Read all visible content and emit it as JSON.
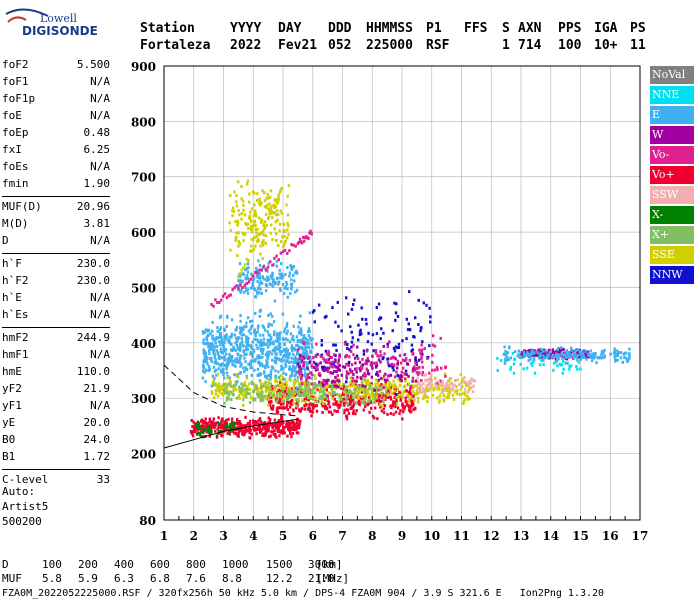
{
  "logo": {
    "line1": "Lowell",
    "line2": "DIGISONDE"
  },
  "header": {
    "row1": [
      "Station",
      "YYYY",
      "DAY",
      "DDD",
      "HHMMSS",
      "P1",
      "FFS",
      "S",
      "AXN",
      "PPS",
      "IGA",
      "PS"
    ],
    "row2": [
      "Fortaleza",
      "2022",
      "Fev21",
      "052",
      "225000",
      "RSF",
      "1",
      "714",
      "100",
      "10+",
      "11"
    ]
  },
  "params": [
    {
      "k": "foF2",
      "v": "5.500"
    },
    {
      "k": "foF1",
      "v": "N/A"
    },
    {
      "k": "foF1p",
      "v": "N/A"
    },
    {
      "k": "foE",
      "v": "N/A"
    },
    {
      "k": "foEp",
      "v": "0.48"
    },
    {
      "k": "fxI",
      "v": "6.25"
    },
    {
      "k": "foEs",
      "v": "N/A"
    },
    {
      "k": "fmin",
      "v": "1.90"
    },
    {
      "k": "MUF(D)",
      "v": "20.96"
    },
    {
      "k": "M(D)",
      "v": "3.81"
    },
    {
      "k": "D",
      "v": "N/A"
    },
    {
      "k": "h`F",
      "v": "230.0"
    },
    {
      "k": "h`F2",
      "v": "230.0"
    },
    {
      "k": "h`E",
      "v": "N/A"
    },
    {
      "k": "h`Es",
      "v": "N/A"
    },
    {
      "k": "hmF2",
      "v": "244.9"
    },
    {
      "k": "hmF1",
      "v": "N/A"
    },
    {
      "k": "hmE",
      "v": "110.0"
    },
    {
      "k": "yF2",
      "v": "21.9"
    },
    {
      "k": "yF1",
      "v": "N/A"
    },
    {
      "k": "yE",
      "v": "20.0"
    },
    {
      "k": "B0",
      "v": "24.0"
    },
    {
      "k": "B1",
      "v": "1.72"
    },
    {
      "k": "C-level",
      "v": "33"
    }
  ],
  "auto": [
    "Auto:",
    "Artist5",
    "500200"
  ],
  "legend": [
    {
      "label": "NoVal",
      "color": "#808080"
    },
    {
      "label": "NNE",
      "color": "#00e0f0"
    },
    {
      "label": "E",
      "color": "#40b0f0"
    },
    {
      "label": "W",
      "color": "#a000a0"
    },
    {
      "label": "Vo-",
      "color": "#e02090"
    },
    {
      "label": "Vo+",
      "color": "#f00030"
    },
    {
      "label": "SSW",
      "color": "#f0b0b0"
    },
    {
      "label": "X-",
      "color": "#008000"
    },
    {
      "label": "X+",
      "color": "#80c060"
    },
    {
      "label": "SSE",
      "color": "#d0d000"
    },
    {
      "label": "NNW",
      "color": "#1010d0"
    }
  ],
  "bottom": {
    "d_label": "D",
    "d_values": [
      "100",
      "200",
      "400",
      "600",
      "800",
      "1000",
      "1500",
      "3000"
    ],
    "d_unit": "[km]",
    "muf_label": "MUF",
    "muf_values": [
      "5.8",
      "5.9",
      "6.3",
      "6.8",
      "7.6",
      "8.8",
      "12.2",
      "21.0"
    ],
    "muf_unit": "[MHz]"
  },
  "footer": "FZA0M_2022052225000.RSF / 320fx256h 50 kHz 5.0 km / DPS-4 FZA0M 904 / 3.9 S 321.6 E   Ion2Png 1.3.20",
  "chart_data": {
    "type": "scatter",
    "x_ticks": [
      1,
      2,
      3,
      4,
      5,
      6,
      7,
      8,
      9,
      10,
      11,
      12,
      13,
      14,
      15,
      16,
      17
    ],
    "y_ticks": [
      80,
      200,
      300,
      400,
      500,
      600,
      700,
      800,
      900
    ],
    "xlim": [
      1,
      17
    ],
    "ylim": [
      80,
      900
    ],
    "grid": true,
    "clusters": [
      {
        "dir": "Vo+",
        "color": "#f00030",
        "xr": [
          1.9,
          5.6
        ],
        "yr": [
          225,
          270
        ],
        "n": 420
      },
      {
        "dir": "Vo+",
        "color": "#f00030",
        "xr": [
          4.5,
          9.5
        ],
        "yr": [
          250,
          340
        ],
        "n": 420
      },
      {
        "dir": "E",
        "color": "#40b0f0",
        "xr": [
          2.3,
          6.0
        ],
        "yr": [
          300,
          470
        ],
        "n": 700
      },
      {
        "dir": "E",
        "color": "#40b0f0",
        "xr": [
          3.5,
          5.5
        ],
        "yr": [
          470,
          560
        ],
        "n": 150
      },
      {
        "dir": "SSE",
        "color": "#d0d000",
        "xr": [
          3.2,
          5.2
        ],
        "yr": [
          530,
          720
        ],
        "n": 180
      },
      {
        "dir": "SSE",
        "color": "#d0d000",
        "xr": [
          2.6,
          11.3
        ],
        "yr": [
          280,
          350
        ],
        "n": 480
      },
      {
        "dir": "X+",
        "color": "#80c060",
        "xr": [
          3.0,
          8.5
        ],
        "yr": [
          280,
          340
        ],
        "n": 220
      },
      {
        "dir": "W",
        "color": "#a000a0",
        "xr": [
          5.5,
          9.5
        ],
        "yr": [
          300,
          400
        ],
        "n": 160
      },
      {
        "dir": "W",
        "color": "#a000a0",
        "xr": [
          13.0,
          15.3
        ],
        "yr": [
          368,
          392
        ],
        "n": 180
      },
      {
        "dir": "E",
        "color": "#40b0f0",
        "xr": [
          12.4,
          16.7
        ],
        "yr": [
          360,
          395
        ],
        "n": 180
      },
      {
        "dir": "NNW",
        "color": "#1010d0",
        "xr": [
          6.0,
          10.0
        ],
        "yr": [
          300,
          520
        ],
        "n": 130
      },
      {
        "dir": "Vo-",
        "color": "#e02090",
        "xr": [
          5.5,
          10.5
        ],
        "yr": [
          300,
          420
        ],
        "n": 160
      },
      {
        "dir": "SSW",
        "color": "#f0b0b0",
        "xr": [
          9.5,
          11.5
        ],
        "yr": [
          300,
          350
        ],
        "n": 70
      },
      {
        "dir": "X-",
        "color": "#008000",
        "xr": [
          2.0,
          3.5
        ],
        "yr": [
          225,
          260
        ],
        "n": 40
      },
      {
        "dir": "NNE",
        "color": "#00e0f0",
        "xr": [
          12.2,
          15.0
        ],
        "yr": [
          330,
          390
        ],
        "n": 40
      }
    ],
    "traces": [
      {
        "dir": "Vo-",
        "color": "#e02090",
        "points": [
          [
            2.6,
            470
          ],
          [
            3.5,
            500
          ],
          [
            4.5,
            540
          ],
          [
            5.5,
            580
          ],
          [
            6.0,
            600
          ]
        ]
      },
      {
        "dir": "SSE",
        "color": "#d0d000",
        "points": [
          [
            3.5,
            520
          ],
          [
            4.3,
            600
          ],
          [
            5.0,
            680
          ]
        ]
      }
    ],
    "profile_line": [
      [
        1.0,
        210
      ],
      [
        2.0,
        225
      ],
      [
        3.0,
        240
      ],
      [
        4.0,
        250
      ],
      [
        5.0,
        258
      ],
      [
        5.5,
        262
      ]
    ],
    "profile_dashed": [
      [
        1.0,
        360
      ],
      [
        2.0,
        310
      ],
      [
        3.0,
        285
      ],
      [
        4.0,
        275
      ],
      [
        5.0,
        270
      ],
      [
        5.5,
        268
      ]
    ]
  }
}
